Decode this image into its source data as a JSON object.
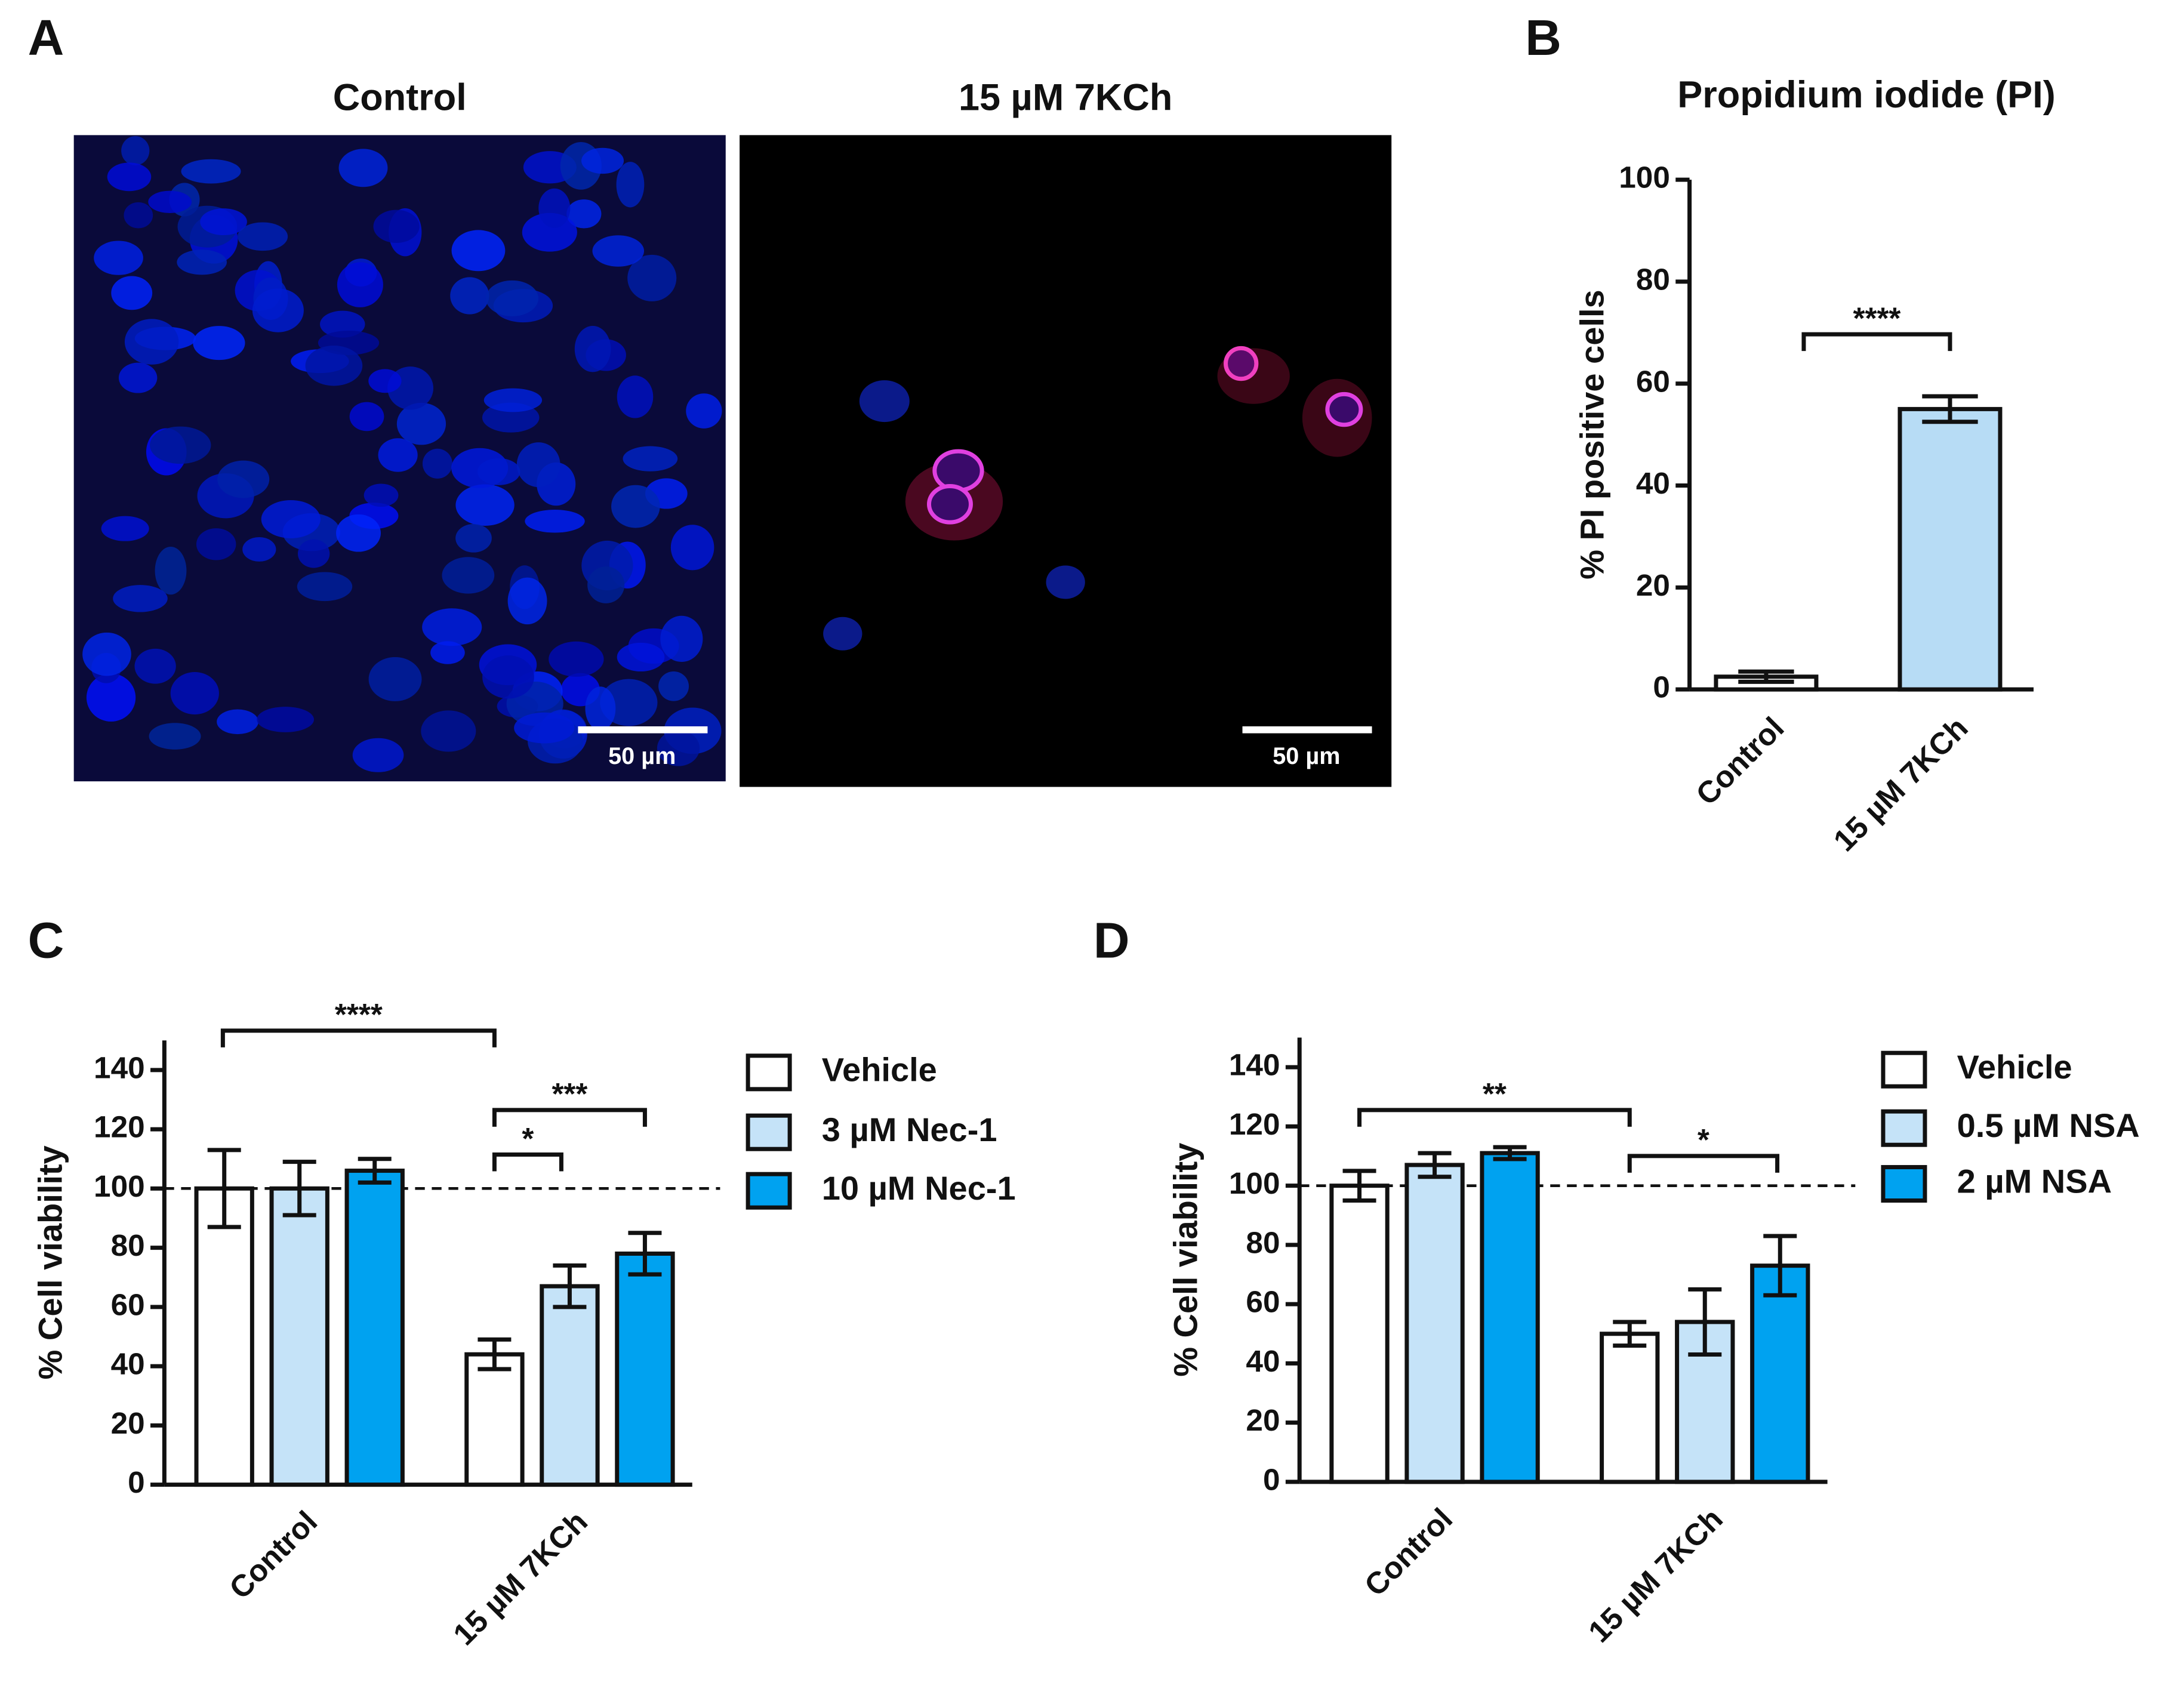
{
  "figure_a": {
    "panel_label": "A",
    "images": [
      {
        "title": "Control",
        "scale_bar": "50 µm"
      },
      {
        "title": "15 µM 7KCh",
        "scale_bar": "50 µm"
      }
    ]
  },
  "chart_data": [
    {
      "type": "bar",
      "panel_label": "B",
      "title": "Propidium iodide (PI)",
      "y_label": "% PI positive cells",
      "categories": [
        "Control",
        "15 µM 7KCh"
      ],
      "values": [
        2.5,
        55
      ],
      "errors": [
        1,
        2.5
      ],
      "colors": [
        "#ffffff",
        "#b7dcf5"
      ],
      "ylim": [
        0,
        100
      ],
      "yticks": [
        0,
        20,
        40,
        60,
        80,
        100
      ],
      "annotations": [
        "****"
      ]
    },
    {
      "type": "grouped_bar",
      "panel_label": "C",
      "y_label": "% Cell viability",
      "categories": [
        "Control",
        "15 µM 7KCh"
      ],
      "series": [
        {
          "name": "Vehicle",
          "color": "#ffffff",
          "values": [
            100,
            44
          ],
          "errors": [
            13,
            5
          ]
        },
        {
          "name": "3 µM Nec-1",
          "color": "#c5e3f8",
          "values": [
            100,
            67
          ],
          "errors": [
            9,
            7
          ]
        },
        {
          "name": "10 µM Nec-1",
          "color": "#00a2f0",
          "values": [
            106,
            78
          ],
          "errors": [
            4,
            7
          ]
        }
      ],
      "ylim": [
        0,
        150
      ],
      "yticks": [
        0,
        20,
        40,
        60,
        80,
        100,
        120,
        140
      ],
      "reference_line": 100,
      "annotations": [
        "****",
        "***",
        "*"
      ]
    },
    {
      "type": "grouped_bar",
      "panel_label": "D",
      "y_label": "% Cell viability",
      "categories": [
        "Control",
        "15 µM 7KCh"
      ],
      "series": [
        {
          "name": "Vehicle",
          "color": "#ffffff",
          "values": [
            100,
            50
          ],
          "errors": [
            5,
            4
          ]
        },
        {
          "name": "0.5 µM NSA",
          "color": "#c5e3f8",
          "values": [
            107,
            54
          ],
          "errors": [
            4,
            11
          ]
        },
        {
          "name": "2 µM NSA",
          "color": "#00a2f0",
          "values": [
            111,
            73
          ],
          "errors": [
            2,
            10
          ]
        }
      ],
      "ylim": [
        0,
        150
      ],
      "yticks": [
        0,
        20,
        40,
        60,
        80,
        100,
        120,
        140
      ],
      "reference_line": 100,
      "annotations": [
        "**",
        "*"
      ]
    }
  ]
}
